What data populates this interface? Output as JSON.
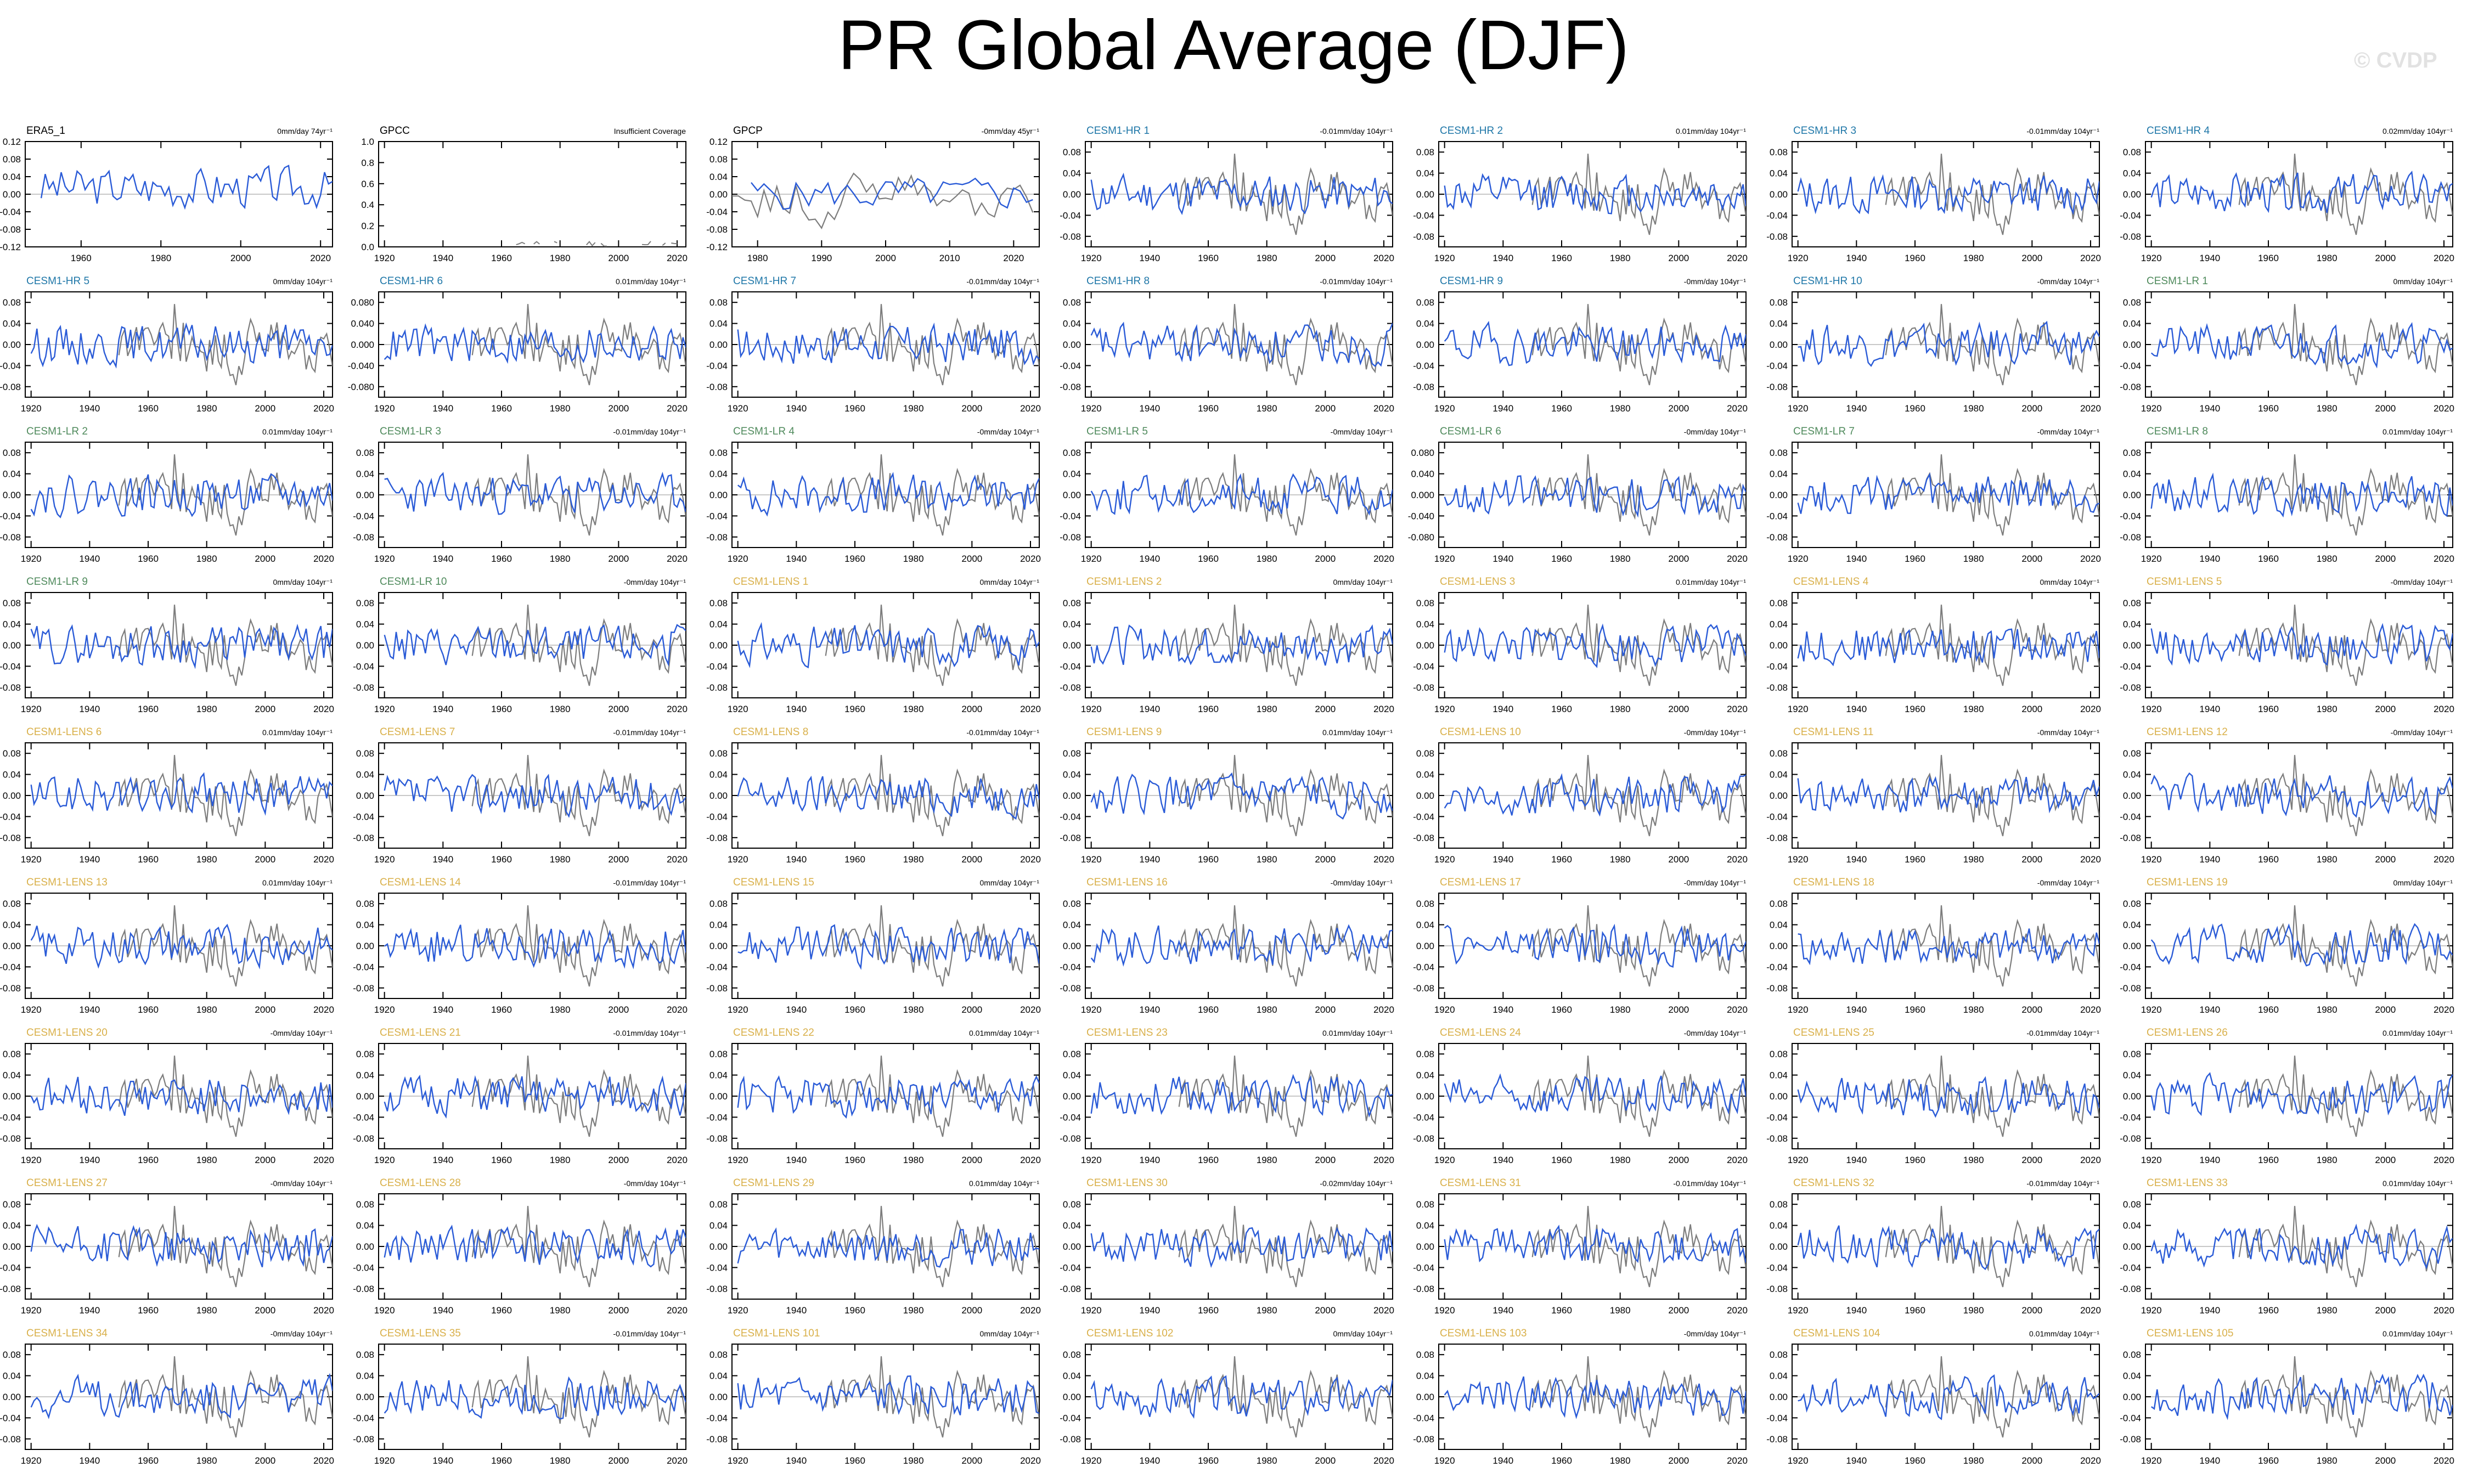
{
  "title": "PR Global Average (DJF)",
  "watermark": "© CVDP",
  "colors": {
    "model_line": "#2a5bd7",
    "obs_line": "#7d7d7d",
    "hr_label": "#1f77a8",
    "lr_label": "#4f8a5c",
    "lens_label": "#d9b04a",
    "obs_label": "#000000"
  },
  "chart_data": {
    "type": "line",
    "layout": "9 rows x 7 columns small multiples",
    "observational_reference": "ERA5_1 (gray line overlaid in model panels, 1950-2023)",
    "panels": [
      {
        "name": "ERA5_1",
        "group": "obs",
        "trend": "0mm/day 74yr⁻¹",
        "xlim": [
          1946,
          2023
        ],
        "xticks": [
          "1960",
          "1980",
          "2000",
          "2020"
        ],
        "ylim": [
          -0.12,
          0.12
        ],
        "yticks": [
          "0.12",
          "0.08",
          "0.04",
          "0.00",
          "-0.04",
          "-0.08",
          "-0.12"
        ],
        "show_obs": false,
        "seed": 3
      },
      {
        "name": "GPCC",
        "group": "obs",
        "trend": "Insufficient Coverage",
        "xlim": [
          1918,
          2023
        ],
        "xticks": [
          "1920",
          "1940",
          "1960",
          "1980",
          "2000",
          "2020"
        ],
        "ylim": [
          0.0,
          1.0
        ],
        "yticks": [
          "1.0",
          "0.8",
          "0.6",
          "0.4",
          "0.2",
          "0.0"
        ],
        "show_obs": false,
        "seed": 0,
        "insufficient": true
      },
      {
        "name": "GPCP",
        "group": "obs",
        "trend": "-0mm/day 45yr⁻¹",
        "xlim": [
          1976,
          2024
        ],
        "xticks": [
          "1980",
          "1990",
          "2000",
          "2010",
          "2020"
        ],
        "ylim": [
          -0.12,
          0.12
        ],
        "yticks": [
          "0.12",
          "0.08",
          "0.04",
          "0.00",
          "-0.04",
          "-0.08",
          "-0.12"
        ],
        "show_obs": true,
        "seed": 5
      },
      {
        "name": "CESM1-HR 1",
        "group": "hr",
        "trend": "-0.01mm/day 104yr⁻¹",
        "seed": 11
      },
      {
        "name": "CESM1-HR 2",
        "group": "hr",
        "trend": "0.01mm/day 104yr⁻¹",
        "seed": 12
      },
      {
        "name": "CESM1-HR 3",
        "group": "hr",
        "trend": "-0.01mm/day 104yr⁻¹",
        "seed": 13
      },
      {
        "name": "CESM1-HR 4",
        "group": "hr",
        "trend": "0.02mm/day 104yr⁻¹",
        "seed": 14
      },
      {
        "name": "CESM1-HR 5",
        "group": "hr",
        "trend": "0mm/day 104yr⁻¹",
        "seed": 15
      },
      {
        "name": "CESM1-HR 6",
        "group": "hr",
        "trend": "0.01mm/day 104yr⁻¹",
        "seed": 16,
        "yticks": [
          "0.080",
          "0.040",
          "0.000",
          "-0.040",
          "-0.080"
        ]
      },
      {
        "name": "CESM1-HR 7",
        "group": "hr",
        "trend": "-0.01mm/day 104yr⁻¹",
        "seed": 17
      },
      {
        "name": "CESM1-HR 8",
        "group": "hr",
        "trend": "-0.01mm/day 104yr⁻¹",
        "seed": 18
      },
      {
        "name": "CESM1-HR 9",
        "group": "hr",
        "trend": "-0mm/day 104yr⁻¹",
        "seed": 19
      },
      {
        "name": "CESM1-HR 10",
        "group": "hr",
        "trend": "-0mm/day 104yr⁻¹",
        "seed": 20
      },
      {
        "name": "CESM1-LR 1",
        "group": "lr",
        "trend": "0mm/day 104yr⁻¹",
        "seed": 21
      },
      {
        "name": "CESM1-LR 2",
        "group": "lr",
        "trend": "0.01mm/day 104yr⁻¹",
        "seed": 22
      },
      {
        "name": "CESM1-LR 3",
        "group": "lr",
        "trend": "-0.01mm/day 104yr⁻¹",
        "seed": 23
      },
      {
        "name": "CESM1-LR 4",
        "group": "lr",
        "trend": "-0mm/day 104yr⁻¹",
        "seed": 24
      },
      {
        "name": "CESM1-LR 5",
        "group": "lr",
        "trend": "-0mm/day 104yr⁻¹",
        "seed": 25
      },
      {
        "name": "CESM1-LR 6",
        "group": "lr",
        "trend": "-0mm/day 104yr⁻¹",
        "seed": 26,
        "yticks": [
          "0.080",
          "0.040",
          "0.000",
          "-0.040",
          "-0.080"
        ]
      },
      {
        "name": "CESM1-LR 7",
        "group": "lr",
        "trend": "-0mm/day 104yr⁻¹",
        "seed": 27
      },
      {
        "name": "CESM1-LR 8",
        "group": "lr",
        "trend": "0.01mm/day 104yr⁻¹",
        "seed": 28
      },
      {
        "name": "CESM1-LR 9",
        "group": "lr",
        "trend": "0mm/day 104yr⁻¹",
        "seed": 29
      },
      {
        "name": "CESM1-LR 10",
        "group": "lr",
        "trend": "-0mm/day 104yr⁻¹",
        "seed": 30
      },
      {
        "name": "CESM1-LENS 1",
        "group": "lens",
        "trend": "0mm/day 104yr⁻¹",
        "seed": 31
      },
      {
        "name": "CESM1-LENS 2",
        "group": "lens",
        "trend": "0mm/day 104yr⁻¹",
        "seed": 32
      },
      {
        "name": "CESM1-LENS 3",
        "group": "lens",
        "trend": "0.01mm/day 104yr⁻¹",
        "seed": 33
      },
      {
        "name": "CESM1-LENS 4",
        "group": "lens",
        "trend": "0mm/day 104yr⁻¹",
        "seed": 34
      },
      {
        "name": "CESM1-LENS 5",
        "group": "lens",
        "trend": "-0mm/day 104yr⁻¹",
        "seed": 35
      },
      {
        "name": "CESM1-LENS 6",
        "group": "lens",
        "trend": "0.01mm/day 104yr⁻¹",
        "seed": 36
      },
      {
        "name": "CESM1-LENS 7",
        "group": "lens",
        "trend": "-0.01mm/day 104yr⁻¹",
        "seed": 37
      },
      {
        "name": "CESM1-LENS 8",
        "group": "lens",
        "trend": "-0.01mm/day 104yr⁻¹",
        "seed": 38
      },
      {
        "name": "CESM1-LENS 9",
        "group": "lens",
        "trend": "0.01mm/day 104yr⁻¹",
        "seed": 39
      },
      {
        "name": "CESM1-LENS 10",
        "group": "lens",
        "trend": "-0mm/day 104yr⁻¹",
        "seed": 40
      },
      {
        "name": "CESM1-LENS 11",
        "group": "lens",
        "trend": "-0mm/day 104yr⁻¹",
        "seed": 41
      },
      {
        "name": "CESM1-LENS 12",
        "group": "lens",
        "trend": "-0mm/day 104yr⁻¹",
        "seed": 42
      },
      {
        "name": "CESM1-LENS 13",
        "group": "lens",
        "trend": "0.01mm/day 104yr⁻¹",
        "seed": 43
      },
      {
        "name": "CESM1-LENS 14",
        "group": "lens",
        "trend": "-0.01mm/day 104yr⁻¹",
        "seed": 44
      },
      {
        "name": "CESM1-LENS 15",
        "group": "lens",
        "trend": "0mm/day 104yr⁻¹",
        "seed": 45
      },
      {
        "name": "CESM1-LENS 16",
        "group": "lens",
        "trend": "-0mm/day 104yr⁻¹",
        "seed": 46
      },
      {
        "name": "CESM1-LENS 17",
        "group": "lens",
        "trend": "-0mm/day 104yr⁻¹",
        "seed": 47
      },
      {
        "name": "CESM1-LENS 18",
        "group": "lens",
        "trend": "-0mm/day 104yr⁻¹",
        "seed": 48
      },
      {
        "name": "CESM1-LENS 19",
        "group": "lens",
        "trend": "0mm/day 104yr⁻¹",
        "seed": 49
      },
      {
        "name": "CESM1-LENS 20",
        "group": "lens",
        "trend": "-0mm/day 104yr⁻¹",
        "seed": 50
      },
      {
        "name": "CESM1-LENS 21",
        "group": "lens",
        "trend": "-0.01mm/day 104yr⁻¹",
        "seed": 51
      },
      {
        "name": "CESM1-LENS 22",
        "group": "lens",
        "trend": "0.01mm/day 104yr⁻¹",
        "seed": 52
      },
      {
        "name": "CESM1-LENS 23",
        "group": "lens",
        "trend": "0.01mm/day 104yr⁻¹",
        "seed": 53
      },
      {
        "name": "CESM1-LENS 24",
        "group": "lens",
        "trend": "-0mm/day 104yr⁻¹",
        "seed": 54
      },
      {
        "name": "CESM1-LENS 25",
        "group": "lens",
        "trend": "-0.01mm/day 104yr⁻¹",
        "seed": 55
      },
      {
        "name": "CESM1-LENS 26",
        "group": "lens",
        "trend": "0.01mm/day 104yr⁻¹",
        "seed": 56
      },
      {
        "name": "CESM1-LENS 27",
        "group": "lens",
        "trend": "-0mm/day 104yr⁻¹",
        "seed": 57
      },
      {
        "name": "CESM1-LENS 28",
        "group": "lens",
        "trend": "-0mm/day 104yr⁻¹",
        "seed": 58
      },
      {
        "name": "CESM1-LENS 29",
        "group": "lens",
        "trend": "0.01mm/day 104yr⁻¹",
        "seed": 59
      },
      {
        "name": "CESM1-LENS 30",
        "group": "lens",
        "trend": "-0.02mm/day 104yr⁻¹",
        "seed": 60
      },
      {
        "name": "CESM1-LENS 31",
        "group": "lens",
        "trend": "-0.01mm/day 104yr⁻¹",
        "seed": 61
      },
      {
        "name": "CESM1-LENS 32",
        "group": "lens",
        "trend": "-0.01mm/day 104yr⁻¹",
        "seed": 62
      },
      {
        "name": "CESM1-LENS 33",
        "group": "lens",
        "trend": "0.01mm/day 104yr⁻¹",
        "seed": 63
      },
      {
        "name": "CESM1-LENS 34",
        "group": "lens",
        "trend": "-0mm/day 104yr⁻¹",
        "seed": 64
      },
      {
        "name": "CESM1-LENS 35",
        "group": "lens",
        "trend": "-0.01mm/day 104yr⁻¹",
        "seed": 65
      },
      {
        "name": "CESM1-LENS 101",
        "group": "lens",
        "trend": "0mm/day 104yr⁻¹",
        "seed": 66
      },
      {
        "name": "CESM1-LENS 102",
        "group": "lens",
        "trend": "0mm/day 104yr⁻¹",
        "seed": 67
      },
      {
        "name": "CESM1-LENS 103",
        "group": "lens",
        "trend": "-0mm/day 104yr⁻¹",
        "seed": 68
      },
      {
        "name": "CESM1-LENS 104",
        "group": "lens",
        "trend": "0.01mm/day 104yr⁻¹",
        "seed": 69
      },
      {
        "name": "CESM1-LENS 105",
        "group": "lens",
        "trend": "0.01mm/day 104yr⁻¹",
        "seed": 70
      }
    ],
    "default_model_axes": {
      "xlim": [
        1918,
        2023
      ],
      "xticks": [
        "1920",
        "1940",
        "1960",
        "1980",
        "2000",
        "2020"
      ],
      "ylim": [
        -0.1,
        0.1
      ],
      "yticks": [
        "0.08",
        "0.04",
        "0.00",
        "-0.04",
        "-0.08"
      ]
    },
    "grid": false,
    "legend": "none"
  }
}
